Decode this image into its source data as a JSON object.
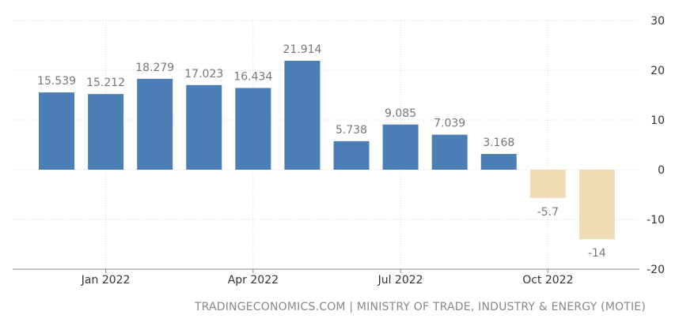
{
  "colors": {
    "positive": "#4a7eb4",
    "negative": "#efdcb5",
    "grid": "#dadada",
    "label": "#777777",
    "axis": "#333333"
  },
  "source_text": "TRADINGECONOMICS.COM | MINISTRY OF TRADE, INDUSTRY & ENERGY (MOTIE)",
  "chart_data": {
    "type": "bar",
    "categories": [
      "2021-12",
      "2022-01",
      "2022-02",
      "2022-03",
      "2022-04",
      "2022-05",
      "2022-06",
      "2022-07",
      "2022-08",
      "2022-09",
      "2022-10",
      "2022-11"
    ],
    "values": [
      15.539,
      15.212,
      18.279,
      17.023,
      16.434,
      21.914,
      5.738,
      9.085,
      7.039,
      3.168,
      -5.7,
      -14
    ],
    "value_labels": [
      "15.539",
      "15.212",
      "18.279",
      "17.023",
      "16.434",
      "21.914",
      "5.738",
      "9.085",
      "7.039",
      "3.168",
      "-5.7",
      "-14"
    ],
    "x_ticks": [
      {
        "label": "Jan 2022",
        "at_index": 1.5
      },
      {
        "label": "Apr 2022",
        "at_index": 4.5
      },
      {
        "label": "Jul 2022",
        "at_index": 7.5
      },
      {
        "label": "Oct 2022",
        "at_index": 10.5
      }
    ],
    "y_ticks": [
      "30",
      "20",
      "10",
      "0",
      "-10",
      "-20"
    ],
    "ylim": [
      -20,
      30
    ],
    "grid": true,
    "y_axis_position": "right",
    "legend": "none"
  }
}
